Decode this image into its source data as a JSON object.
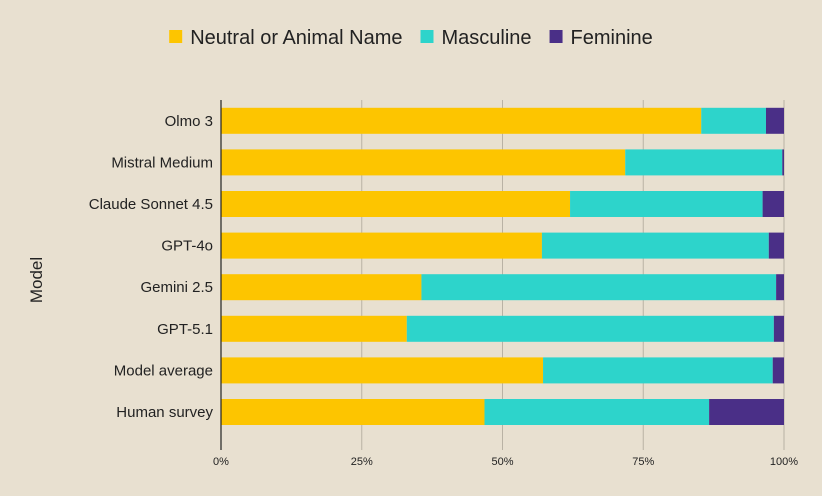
{
  "chart_data": {
    "type": "bar",
    "orientation": "horizontal",
    "stacked": true,
    "ylabel": "Model",
    "xlim": [
      0,
      100
    ],
    "x_ticks": [
      "0%",
      "25%",
      "50%",
      "75%",
      "100%"
    ],
    "grid": true,
    "legend_position": "top-center",
    "categories": [
      "Olmo 3",
      "Mistral Medium",
      "Claude Sonnet 4.5",
      "GPT-4o",
      "Gemini 2.5",
      "GPT-5.1",
      "Model average",
      "Human survey"
    ],
    "series": [
      {
        "name": "Neutral or Animal Name",
        "color": "#fdc500",
        "values": [
          85.3,
          71.8,
          62.0,
          57.0,
          35.6,
          33.0,
          57.2,
          46.8
        ]
      },
      {
        "name": "Masculine",
        "color": "#2dd4cb",
        "values": [
          11.5,
          27.9,
          34.2,
          40.3,
          63.0,
          65.2,
          40.8,
          39.9
        ]
      },
      {
        "name": "Feminine",
        "color": "#4a2f87",
        "values": [
          3.2,
          0.3,
          3.8,
          2.7,
          1.4,
          1.8,
          2.0,
          13.3
        ]
      }
    ]
  }
}
